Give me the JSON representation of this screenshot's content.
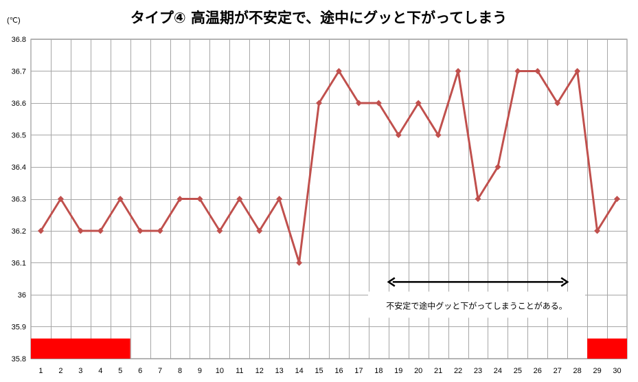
{
  "chart_data": {
    "type": "line",
    "title": "タイプ④ 高温期が不安定で、途中にグッと下がってしまう",
    "ylabel": "(℃)",
    "xlabel": "",
    "x": [
      1,
      2,
      3,
      4,
      5,
      6,
      7,
      8,
      9,
      10,
      11,
      12,
      13,
      14,
      15,
      16,
      17,
      18,
      19,
      20,
      21,
      22,
      23,
      24,
      25,
      26,
      27,
      28,
      29,
      30
    ],
    "ylim": [
      35.8,
      36.8
    ],
    "yticks": [
      "35.8",
      "35.9",
      "36",
      "36.1",
      "36.2",
      "36.3",
      "36.4",
      "36.5",
      "36.6",
      "36.7",
      "36.8"
    ],
    "grid": true,
    "series": [
      {
        "values": [
          36.2,
          36.3,
          36.2,
          36.2,
          36.3,
          36.2,
          36.2,
          36.3,
          36.3,
          36.2,
          36.3,
          36.2,
          36.3,
          36.1,
          36.6,
          36.7,
          36.6,
          36.6,
          36.5,
          36.6,
          36.5,
          36.7,
          36.3,
          36.4,
          36.7,
          36.7,
          36.6,
          36.7,
          36.2,
          36.3
        ],
        "color": "#c0504d"
      }
    ],
    "menstruation_ranges": [
      [
        1,
        5
      ],
      [
        29,
        30
      ]
    ],
    "menstruation_color": "#ff0000",
    "annotation": {
      "text": "不安定で途中グッと下がってしまうことがある。",
      "arrow_from_x": 18.5,
      "arrow_to_x": 27.5,
      "arrow_y": 36.04
    }
  }
}
